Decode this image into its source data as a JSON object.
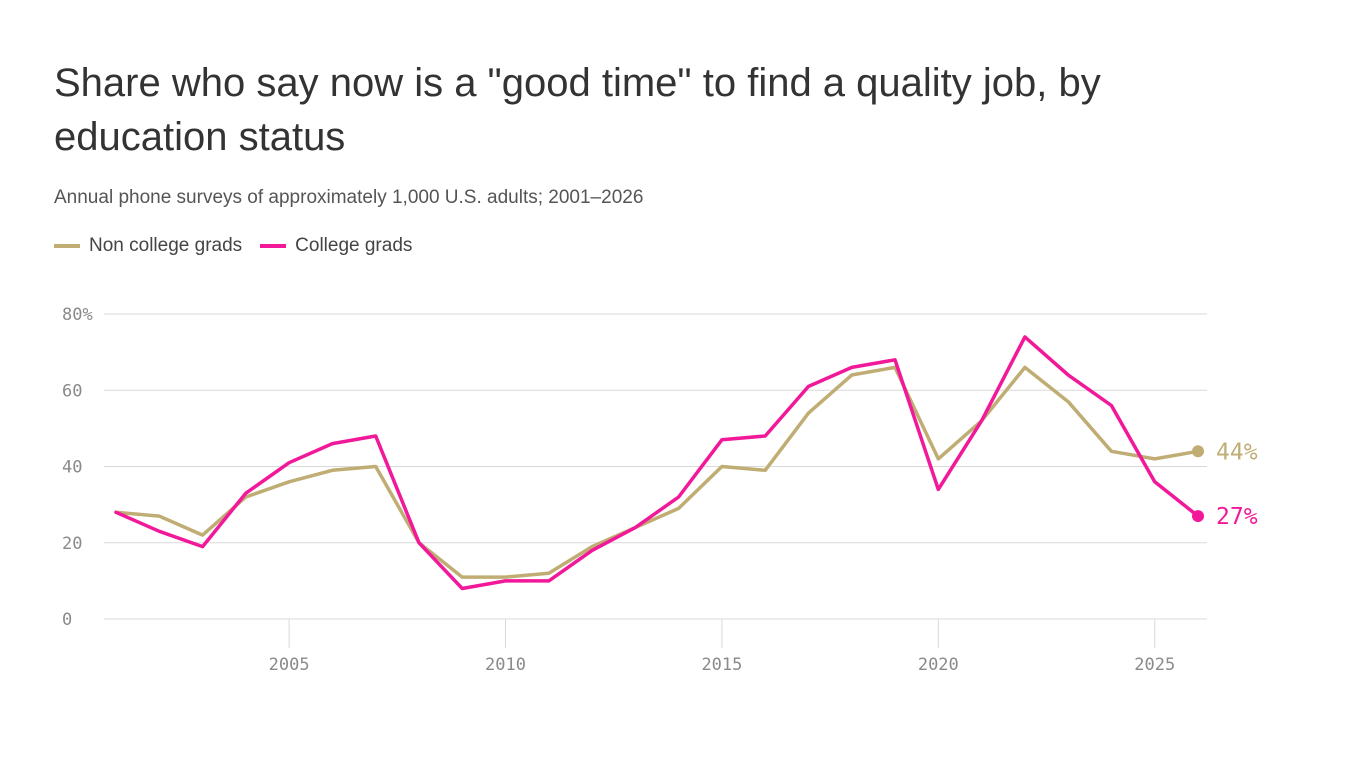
{
  "chart_data": {
    "type": "line",
    "title": "Share who say now is a \"good time\" to find a quality job, by education status",
    "subtitle": "Annual phone surveys of approximately 1,000 U.S. adults; 2001–2026",
    "xlabel": "",
    "ylabel": "",
    "xlim": [
      2001,
      2026
    ],
    "ylim": [
      0,
      80
    ],
    "x_ticks": [
      2005,
      2010,
      2015,
      2020,
      2025
    ],
    "x_tick_labels": [
      "2005",
      "2010",
      "2015",
      "2020",
      "2025"
    ],
    "y_ticks": [
      0,
      20,
      40,
      60,
      80
    ],
    "y_tick_labels": [
      "0",
      "20",
      "40",
      "60",
      "80%"
    ],
    "grid": true,
    "legend_position": "top-left",
    "x": [
      2001,
      2002,
      2003,
      2004,
      2005,
      2006,
      2007,
      2008,
      2009,
      2010,
      2011,
      2012,
      2013,
      2014,
      2015,
      2016,
      2017,
      2018,
      2019,
      2020,
      2021,
      2022,
      2023,
      2024,
      2025,
      2026
    ],
    "series": [
      {
        "name": "Non college grads",
        "color": "#c0ad74",
        "values": [
          28,
          27,
          22,
          32,
          36,
          39,
          40,
          20,
          11,
          11,
          12,
          19,
          24,
          29,
          40,
          39,
          54,
          64,
          66,
          42,
          52,
          66,
          57,
          44,
          42,
          44
        ],
        "end_label": "44%"
      },
      {
        "name": "College grads",
        "color": "#f2189a",
        "values": [
          28,
          23,
          19,
          33,
          41,
          46,
          48,
          20,
          8,
          10,
          10,
          18,
          24,
          32,
          47,
          48,
          61,
          66,
          68,
          34,
          52,
          74,
          64,
          56,
          36,
          27
        ],
        "end_label": "27%"
      }
    ]
  }
}
